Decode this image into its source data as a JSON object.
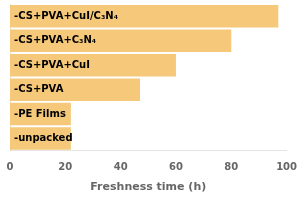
{
  "chart_data": {
    "type": "bar",
    "orientation": "horizontal",
    "categories": [
      "-CS+PVA+CuI/C₃N₄",
      "-CS+PVA+C₃N₄",
      "-CS+PVA+CuI",
      "-CS+PVA",
      "-PE Films",
      "-unpacked"
    ],
    "values": [
      97,
      80,
      60,
      47,
      22,
      22
    ],
    "color": "#F5C87A",
    "xlabel": "Freshness time (h)",
    "xlim": [
      0,
      100
    ],
    "xticks": [
      0,
      20,
      40,
      60,
      80,
      100
    ],
    "grid": false,
    "tick_labels": "x"
  }
}
